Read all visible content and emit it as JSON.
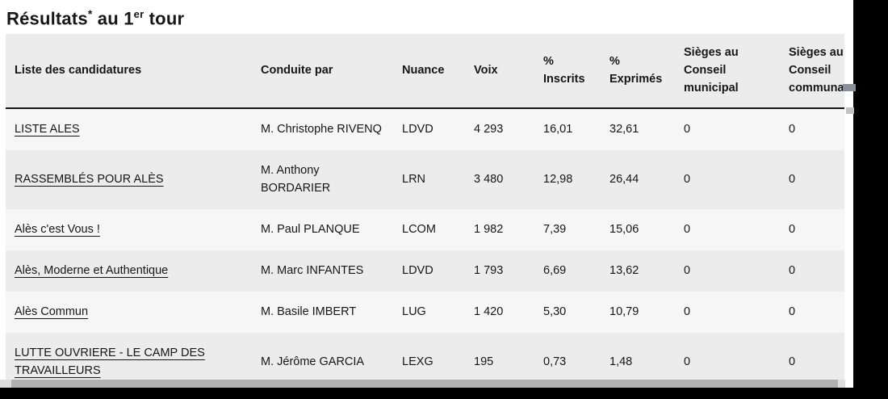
{
  "title": {
    "prefix": "Résultats",
    "asterisk": "*",
    "middle": " au 1",
    "ordinal": "er",
    "suffix": " tour"
  },
  "table": {
    "columns": [
      {
        "label": "Liste des candidatures"
      },
      {
        "label": "Conduite par"
      },
      {
        "label": "Nuance"
      },
      {
        "label": "Voix"
      },
      {
        "label": "% Inscrits"
      },
      {
        "label": "% Exprimés"
      },
      {
        "label": "Sièges au Conseil municipal"
      },
      {
        "label": "Sièges au Conseil communautaire"
      }
    ],
    "rows": [
      {
        "liste": "LISTE ALES",
        "conduite": "M. Christophe RIVENQ",
        "nuance": "LDVD",
        "voix": "4 293",
        "pct_inscrits": "16,01",
        "pct_exprimes": "32,61",
        "sieges_municipal": "0",
        "sieges_communautaire": "0"
      },
      {
        "liste": "RASSEMBLÉS POUR ALÈS",
        "conduite": "M. Anthony BORDARIER",
        "nuance": "LRN",
        "voix": "3 480",
        "pct_inscrits": "12,98",
        "pct_exprimes": "26,44",
        "sieges_municipal": "0",
        "sieges_communautaire": "0"
      },
      {
        "liste": "Alès c'est Vous !",
        "conduite": "M. Paul PLANQUE",
        "nuance": "LCOM",
        "voix": "1 982",
        "pct_inscrits": "7,39",
        "pct_exprimes": "15,06",
        "sieges_municipal": "0",
        "sieges_communautaire": "0"
      },
      {
        "liste": "Alès, Moderne et Authentique",
        "conduite": "M. Marc INFANTES",
        "nuance": "LDVD",
        "voix": "1 793",
        "pct_inscrits": "6,69",
        "pct_exprimes": "13,62",
        "sieges_municipal": "0",
        "sieges_communautaire": "0"
      },
      {
        "liste": "Alès Commun",
        "conduite": "M. Basile IMBERT",
        "nuance": "LUG",
        "voix": "1 420",
        "pct_inscrits": "5,30",
        "pct_exprimes": "10,79",
        "sieges_municipal": "0",
        "sieges_communautaire": "0"
      },
      {
        "liste": "LUTTE OUVRIERE - LE CAMP DES TRAVAILLEURS",
        "conduite": "M. Jérôme GARCIA",
        "nuance": "LEXG",
        "voix": "195",
        "pct_inscrits": "0,73",
        "pct_exprimes": "1,48",
        "sieges_municipal": "0",
        "sieges_communautaire": "0"
      }
    ]
  },
  "colors": {
    "text": "#161616",
    "row_light": "#f6f6f6",
    "row_dark": "#ececec",
    "header_border": "#161616",
    "scrollbar_thumb": "#b1b1b1",
    "scrollbar_track": "#dedede",
    "background_outside": "#000000"
  }
}
